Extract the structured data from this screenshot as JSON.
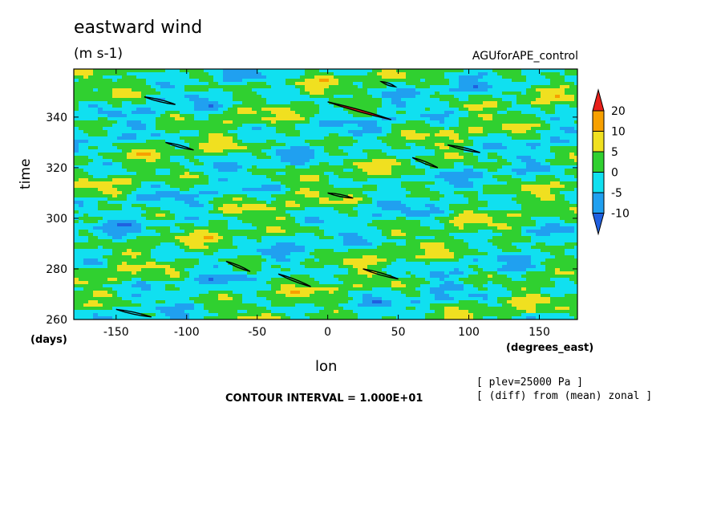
{
  "chart_data": {
    "type": "heatmap",
    "title": "eastward wind",
    "units": "(m s-1)",
    "dataset": "AGUforAPE_control",
    "xlabel": "lon",
    "ylabel": "time",
    "xunits": "(degrees_east)",
    "yunits": "(days)",
    "xlim": [
      -180,
      177
    ],
    "ylim": [
      260,
      359
    ],
    "x_ticks": [
      -150,
      -100,
      -50,
      0,
      50,
      100,
      150
    ],
    "y_ticks": [
      260,
      280,
      300,
      320,
      340
    ],
    "contour_interval": "CONTOUR INTERVAL = 1.000E+01",
    "notes": [
      "[ plev=25000 Pa ]",
      "[ (diff) from (mean) zonal ]"
    ],
    "colorbar": {
      "labels": [
        "20",
        "10",
        "5",
        "0",
        "-5",
        "-10"
      ],
      "colors": [
        "#e8201a",
        "#f7a000",
        "#f0e020",
        "#30d030",
        "#10e0f0",
        "#20a0f0",
        "#2060e0"
      ]
    },
    "contours_20": [
      {
        "x": [
          0,
          45
        ],
        "y": [
          346,
          339
        ]
      },
      {
        "x": [
          60,
          78
        ],
        "y": [
          324,
          320
        ]
      },
      {
        "x": [
          -72,
          -55
        ],
        "y": [
          283,
          279
        ]
      },
      {
        "x": [
          -35,
          -12
        ],
        "y": [
          278,
          273
        ]
      },
      {
        "x": [
          -150,
          -125
        ],
        "y": [
          264,
          261
        ]
      },
      {
        "x": [
          -115,
          -95
        ],
        "y": [
          330,
          327
        ]
      },
      {
        "x": [
          25,
          50
        ],
        "y": [
          280,
          276
        ]
      },
      {
        "x": [
          85,
          108
        ],
        "y": [
          329,
          326
        ]
      },
      {
        "x": [
          0,
          18
        ],
        "y": [
          310,
          308
        ]
      },
      {
        "x": [
          -130,
          -108
        ],
        "y": [
          348,
          345
        ]
      },
      {
        "x": [
          38,
          48
        ],
        "y": [
          354,
          352
        ]
      }
    ]
  }
}
